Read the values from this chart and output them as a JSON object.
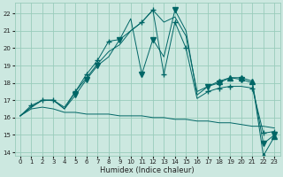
{
  "xlabel": "Humidex (Indice chaleur)",
  "bg_color": "#cce8e0",
  "grid_color": "#99ccbb",
  "line_color": "#006666",
  "xlim": [
    -0.5,
    23.5
  ],
  "ylim": [
    13.8,
    22.6
  ],
  "yticks": [
    14,
    15,
    16,
    17,
    18,
    19,
    20,
    21,
    22
  ],
  "xticks": [
    0,
    1,
    2,
    3,
    4,
    5,
    6,
    7,
    8,
    9,
    10,
    11,
    12,
    13,
    14,
    15,
    16,
    17,
    18,
    19,
    20,
    21,
    22,
    23
  ],
  "series": [
    {
      "x": [
        0,
        1,
        2,
        3,
        4,
        5,
        6,
        7,
        8,
        9,
        10,
        11,
        12,
        13,
        14,
        15,
        16,
        17,
        18,
        19,
        20,
        21,
        22,
        23
      ],
      "y": [
        16.1,
        16.7,
        17.0,
        17.0,
        16.5,
        17.5,
        18.5,
        19.3,
        20.4,
        20.5,
        21.0,
        21.5,
        22.2,
        18.5,
        21.5,
        20.0,
        17.1,
        17.5,
        17.7,
        17.8,
        17.8,
        17.7,
        15.1,
        15.2
      ],
      "marker": "+",
      "markersize": 4,
      "markevery": [
        1,
        2,
        3,
        5,
        6,
        7,
        8,
        11,
        12,
        13,
        14,
        15,
        17,
        18,
        19,
        21,
        22,
        23
      ]
    },
    {
      "x": [
        0,
        1,
        2,
        3,
        4,
        5,
        6,
        7,
        8,
        9,
        10,
        11,
        12,
        13,
        14,
        15,
        16,
        17,
        18,
        19,
        20,
        21,
        22,
        23
      ],
      "y": [
        16.1,
        16.5,
        16.6,
        16.5,
        16.3,
        16.3,
        16.2,
        16.2,
        16.2,
        16.1,
        16.1,
        16.1,
        16.0,
        16.0,
        15.9,
        15.9,
        15.8,
        15.8,
        15.7,
        15.7,
        15.6,
        15.5,
        15.5,
        15.4
      ],
      "marker": null,
      "markersize": 0
    },
    {
      "x": [
        0,
        1,
        2,
        3,
        4,
        5,
        6,
        7,
        8,
        9,
        10,
        11,
        12,
        13,
        14,
        15,
        16,
        17,
        18,
        19,
        20,
        21,
        22,
        23
      ],
      "y": [
        16.1,
        16.6,
        17.0,
        17.0,
        16.5,
        17.3,
        18.2,
        19.0,
        19.5,
        20.5,
        21.7,
        18.5,
        20.5,
        19.5,
        22.2,
        21.0,
        17.3,
        17.8,
        18.0,
        18.3,
        18.2,
        18.0,
        14.5,
        15.0
      ],
      "marker": "v",
      "markersize": 4,
      "markevery": [
        5,
        6,
        7,
        9,
        11,
        12,
        14,
        17,
        18,
        20,
        22,
        23
      ]
    },
    {
      "x": [
        0,
        1,
        2,
        3,
        4,
        5,
        6,
        7,
        8,
        9,
        10,
        11,
        12,
        13,
        14,
        15,
        16,
        17,
        18,
        19,
        20,
        21,
        22,
        23
      ],
      "y": [
        16.1,
        16.6,
        17.0,
        17.0,
        16.6,
        17.5,
        18.3,
        19.1,
        19.8,
        20.2,
        21.0,
        21.5,
        22.2,
        21.5,
        21.8,
        20.7,
        17.5,
        17.8,
        18.1,
        18.3,
        18.3,
        18.1,
        13.8,
        14.9
      ],
      "marker": "^",
      "markersize": 4,
      "markevery": [
        18,
        19,
        20,
        21,
        22,
        23
      ]
    }
  ]
}
